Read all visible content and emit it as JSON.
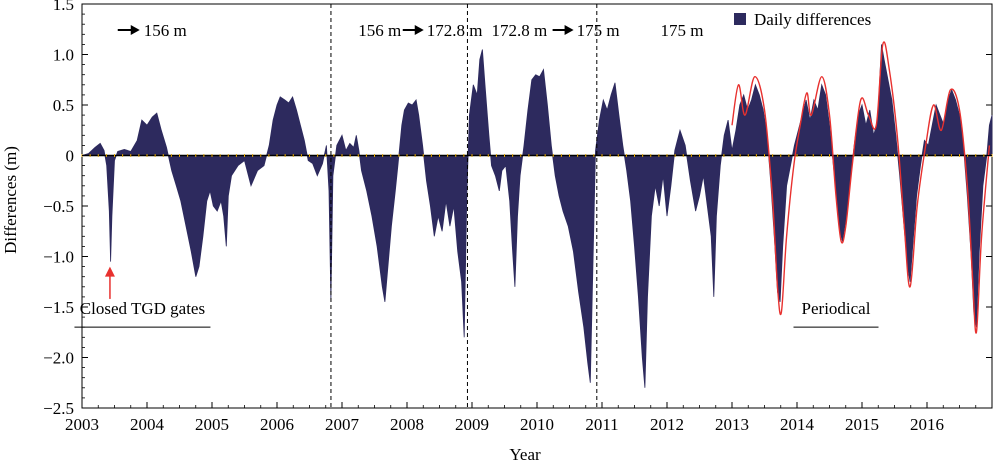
{
  "chart_data": {
    "type": "area",
    "ylabel": "Differences (m)",
    "xlabel": "Year",
    "xlim": [
      2003,
      2017
    ],
    "ylim": [
      -2.5,
      1.5
    ],
    "x_ticks": [
      "2003",
      "2004",
      "2005",
      "2006",
      "2007",
      "2008",
      "2009",
      "2010",
      "2011",
      "2012",
      "2013",
      "2014",
      "2015",
      "2016"
    ],
    "y_ticks": [
      {
        "value": 1.5,
        "label": "1.5"
      },
      {
        "value": 1.0,
        "label": "1.0"
      },
      {
        "value": 0.5,
        "label": "0.5"
      },
      {
        "value": 0,
        "label": "0"
      },
      {
        "value": -0.5,
        "label": "−0.5"
      },
      {
        "value": -1.0,
        "label": "−1.0"
      },
      {
        "value": -1.5,
        "label": "−1.5"
      },
      {
        "value": -2.0,
        "label": "−2.0"
      },
      {
        "value": -2.5,
        "label": "−2.5"
      }
    ],
    "legend": {
      "label": "Daily differences",
      "position": "top-right"
    },
    "series": [
      {
        "name": "Daily differences",
        "color": "#2d2a5e",
        "points": [
          [
            2003.0,
            0
          ],
          [
            2003.1,
            0.02
          ],
          [
            2003.2,
            0.08
          ],
          [
            2003.28,
            0.12
          ],
          [
            2003.34,
            0.05
          ],
          [
            2003.38,
            -0.1
          ],
          [
            2003.42,
            -0.55
          ],
          [
            2003.44,
            -1.05
          ],
          [
            2003.46,
            -0.6
          ],
          [
            2003.5,
            -0.05
          ],
          [
            2003.55,
            0.04
          ],
          [
            2003.65,
            0.06
          ],
          [
            2003.75,
            0.04
          ],
          [
            2003.85,
            0.15
          ],
          [
            2003.92,
            0.35
          ],
          [
            2004.0,
            0.3
          ],
          [
            2004.08,
            0.38
          ],
          [
            2004.15,
            0.42
          ],
          [
            2004.22,
            0.25
          ],
          [
            2004.3,
            0.08
          ],
          [
            2004.38,
            -0.15
          ],
          [
            2004.45,
            -0.3
          ],
          [
            2004.52,
            -0.45
          ],
          [
            2004.6,
            -0.7
          ],
          [
            2004.68,
            -0.95
          ],
          [
            2004.75,
            -1.2
          ],
          [
            2004.8,
            -1.1
          ],
          [
            2004.86,
            -0.8
          ],
          [
            2004.92,
            -0.45
          ],
          [
            2004.97,
            -0.35
          ],
          [
            2005.02,
            -0.5
          ],
          [
            2005.08,
            -0.55
          ],
          [
            2005.14,
            -0.45
          ],
          [
            2005.18,
            -0.6
          ],
          [
            2005.22,
            -0.9
          ],
          [
            2005.25,
            -0.4
          ],
          [
            2005.3,
            -0.2
          ],
          [
            2005.4,
            -0.1
          ],
          [
            2005.5,
            -0.05
          ],
          [
            2005.6,
            -0.3
          ],
          [
            2005.7,
            -0.15
          ],
          [
            2005.8,
            -0.1
          ],
          [
            2005.88,
            0.1
          ],
          [
            2005.94,
            0.35
          ],
          [
            2006.0,
            0.5
          ],
          [
            2006.05,
            0.58
          ],
          [
            2006.12,
            0.55
          ],
          [
            2006.18,
            0.52
          ],
          [
            2006.24,
            0.58
          ],
          [
            2006.3,
            0.45
          ],
          [
            2006.36,
            0.3
          ],
          [
            2006.42,
            0.15
          ],
          [
            2006.48,
            -0.05
          ],
          [
            2006.55,
            -0.08
          ],
          [
            2006.62,
            -0.2
          ],
          [
            2006.7,
            -0.08
          ],
          [
            2006.76,
            0.1
          ],
          [
            2006.8,
            -0.35
          ],
          [
            2006.83,
            -1.45
          ],
          [
            2006.86,
            -0.2
          ],
          [
            2006.92,
            0.1
          ],
          [
            2007.0,
            0.2
          ],
          [
            2007.06,
            0.05
          ],
          [
            2007.12,
            0.12
          ],
          [
            2007.18,
            0.08
          ],
          [
            2007.22,
            0.2
          ],
          [
            2007.26,
            0.05
          ],
          [
            2007.3,
            -0.15
          ],
          [
            2007.38,
            -0.35
          ],
          [
            2007.46,
            -0.6
          ],
          [
            2007.54,
            -0.9
          ],
          [
            2007.62,
            -1.3
          ],
          [
            2007.66,
            -1.45
          ],
          [
            2007.7,
            -1.15
          ],
          [
            2007.76,
            -0.7
          ],
          [
            2007.82,
            -0.35
          ],
          [
            2007.86,
            -0.1
          ],
          [
            2007.92,
            0.3
          ],
          [
            2007.96,
            0.45
          ],
          [
            2008.02,
            0.52
          ],
          [
            2008.08,
            0.5
          ],
          [
            2008.14,
            0.55
          ],
          [
            2008.18,
            0.4
          ],
          [
            2008.24,
            0.1
          ],
          [
            2008.3,
            -0.25
          ],
          [
            2008.36,
            -0.5
          ],
          [
            2008.42,
            -0.8
          ],
          [
            2008.48,
            -0.6
          ],
          [
            2008.54,
            -0.75
          ],
          [
            2008.6,
            -0.45
          ],
          [
            2008.66,
            -0.7
          ],
          [
            2008.72,
            -0.5
          ],
          [
            2008.78,
            -0.95
          ],
          [
            2008.84,
            -1.25
          ],
          [
            2008.88,
            -1.8
          ],
          [
            2008.92,
            -0.4
          ],
          [
            2008.96,
            0.4
          ],
          [
            2009.02,
            0.7
          ],
          [
            2009.08,
            0.6
          ],
          [
            2009.12,
            0.95
          ],
          [
            2009.16,
            1.05
          ],
          [
            2009.2,
            0.7
          ],
          [
            2009.26,
            0.2
          ],
          [
            2009.3,
            -0.1
          ],
          [
            2009.36,
            -0.2
          ],
          [
            2009.42,
            -0.35
          ],
          [
            2009.46,
            -0.15
          ],
          [
            2009.52,
            -0.1
          ],
          [
            2009.58,
            -0.45
          ],
          [
            2009.62,
            -0.9
          ],
          [
            2009.66,
            -1.3
          ],
          [
            2009.7,
            -0.6
          ],
          [
            2009.74,
            -0.2
          ],
          [
            2009.8,
            0.1
          ],
          [
            2009.86,
            0.45
          ],
          [
            2009.92,
            0.75
          ],
          [
            2009.98,
            0.8
          ],
          [
            2010.04,
            0.78
          ],
          [
            2010.1,
            0.85
          ],
          [
            2010.16,
            0.5
          ],
          [
            2010.22,
            0.1
          ],
          [
            2010.28,
            -0.2
          ],
          [
            2010.34,
            -0.4
          ],
          [
            2010.4,
            -0.55
          ],
          [
            2010.48,
            -0.7
          ],
          [
            2010.56,
            -0.95
          ],
          [
            2010.64,
            -1.35
          ],
          [
            2010.72,
            -1.7
          ],
          [
            2010.78,
            -2.05
          ],
          [
            2010.82,
            -2.25
          ],
          [
            2010.86,
            -1.1
          ],
          [
            2010.9,
            0.05
          ],
          [
            2010.96,
            0.35
          ],
          [
            2011.02,
            0.55
          ],
          [
            2011.08,
            0.45
          ],
          [
            2011.14,
            0.6
          ],
          [
            2011.2,
            0.72
          ],
          [
            2011.26,
            0.4
          ],
          [
            2011.32,
            0.1
          ],
          [
            2011.38,
            -0.15
          ],
          [
            2011.44,
            -0.45
          ],
          [
            2011.5,
            -0.9
          ],
          [
            2011.56,
            -1.4
          ],
          [
            2011.62,
            -2.0
          ],
          [
            2011.66,
            -2.3
          ],
          [
            2011.7,
            -1.4
          ],
          [
            2011.76,
            -0.6
          ],
          [
            2011.82,
            -0.3
          ],
          [
            2011.88,
            -0.5
          ],
          [
            2011.94,
            -0.2
          ],
          [
            2012.0,
            -0.6
          ],
          [
            2012.06,
            -0.3
          ],
          [
            2012.12,
            0.05
          ],
          [
            2012.2,
            0.25
          ],
          [
            2012.28,
            0.1
          ],
          [
            2012.36,
            -0.25
          ],
          [
            2012.44,
            -0.55
          ],
          [
            2012.5,
            -0.4
          ],
          [
            2012.56,
            -0.2
          ],
          [
            2012.62,
            -0.5
          ],
          [
            2012.68,
            -0.8
          ],
          [
            2012.72,
            -1.4
          ],
          [
            2012.76,
            -0.6
          ],
          [
            2012.82,
            -0.1
          ],
          [
            2012.88,
            0.2
          ],
          [
            2012.94,
            0.35
          ],
          [
            2013.0,
            0.05
          ],
          [
            2013.06,
            0.25
          ],
          [
            2013.12,
            0.5
          ],
          [
            2013.18,
            0.6
          ],
          [
            2013.24,
            0.45
          ],
          [
            2013.3,
            0.55
          ],
          [
            2013.36,
            0.7
          ],
          [
            2013.42,
            0.6
          ],
          [
            2013.48,
            0.45
          ],
          [
            2013.54,
            0.2
          ],
          [
            2013.6,
            -0.3
          ],
          [
            2013.66,
            -0.9
          ],
          [
            2013.7,
            -1.35
          ],
          [
            2013.74,
            -1.45
          ],
          [
            2013.78,
            -0.9
          ],
          [
            2013.84,
            -0.3
          ],
          [
            2013.9,
            -0.1
          ],
          [
            2013.96,
            0.1
          ],
          [
            2014.02,
            0.25
          ],
          [
            2014.08,
            0.4
          ],
          [
            2014.14,
            0.55
          ],
          [
            2014.2,
            0.35
          ],
          [
            2014.26,
            0.55
          ],
          [
            2014.32,
            0.45
          ],
          [
            2014.38,
            0.7
          ],
          [
            2014.44,
            0.6
          ],
          [
            2014.5,
            0.3
          ],
          [
            2014.56,
            -0.1
          ],
          [
            2014.62,
            -0.5
          ],
          [
            2014.66,
            -0.75
          ],
          [
            2014.7,
            -0.85
          ],
          [
            2014.76,
            -0.6
          ],
          [
            2014.82,
            -0.25
          ],
          [
            2014.88,
            0.1
          ],
          [
            2014.94,
            0.4
          ],
          [
            2015.0,
            0.5
          ],
          [
            2015.06,
            0.3
          ],
          [
            2015.12,
            0.45
          ],
          [
            2015.18,
            0.2
          ],
          [
            2015.24,
            0.35
          ],
          [
            2015.3,
            1.1
          ],
          [
            2015.34,
            0.95
          ],
          [
            2015.4,
            0.75
          ],
          [
            2015.46,
            0.55
          ],
          [
            2015.52,
            0.2
          ],
          [
            2015.58,
            -0.2
          ],
          [
            2015.62,
            -0.5
          ],
          [
            2015.66,
            -0.8
          ],
          [
            2015.7,
            -1.1
          ],
          [
            2015.74,
            -1.25
          ],
          [
            2015.78,
            -0.9
          ],
          [
            2015.84,
            -0.4
          ],
          [
            2015.9,
            -0.1
          ],
          [
            2015.96,
            0.15
          ],
          [
            2016.02,
            0.1
          ],
          [
            2016.08,
            0.3
          ],
          [
            2016.14,
            0.5
          ],
          [
            2016.2,
            0.4
          ],
          [
            2016.26,
            0.3
          ],
          [
            2016.32,
            0.55
          ],
          [
            2016.38,
            0.65
          ],
          [
            2016.44,
            0.55
          ],
          [
            2016.5,
            0.4
          ],
          [
            2016.56,
            0.1
          ],
          [
            2016.62,
            -0.4
          ],
          [
            2016.68,
            -1.0
          ],
          [
            2016.72,
            -1.55
          ],
          [
            2016.76,
            -1.7
          ],
          [
            2016.8,
            -1.0
          ],
          [
            2016.86,
            -0.3
          ],
          [
            2016.92,
            0.0
          ],
          [
            2016.96,
            0.3
          ],
          [
            2017.0,
            0.4
          ]
        ]
      }
    ],
    "envelope": {
      "color": "#e8312f",
      "points": [
        [
          2013.0,
          0.3
        ],
        [
          2013.1,
          0.7
        ],
        [
          2013.2,
          0.4
        ],
        [
          2013.35,
          0.78
        ],
        [
          2013.5,
          0.45
        ],
        [
          2013.62,
          -0.4
        ],
        [
          2013.7,
          -1.3
        ],
        [
          2013.76,
          -1.55
        ],
        [
          2013.84,
          -0.8
        ],
        [
          2013.95,
          -0.1
        ],
        [
          2014.05,
          0.3
        ],
        [
          2014.15,
          0.62
        ],
        [
          2014.22,
          0.4
        ],
        [
          2014.38,
          0.78
        ],
        [
          2014.5,
          0.4
        ],
        [
          2014.6,
          -0.4
        ],
        [
          2014.68,
          -0.85
        ],
        [
          2014.75,
          -0.7
        ],
        [
          2014.85,
          -0.1
        ],
        [
          2014.98,
          0.55
        ],
        [
          2015.1,
          0.4
        ],
        [
          2015.22,
          0.3
        ],
        [
          2015.32,
          1.1
        ],
        [
          2015.42,
          0.85
        ],
        [
          2015.55,
          0.15
        ],
        [
          2015.65,
          -0.7
        ],
        [
          2015.74,
          -1.3
        ],
        [
          2015.85,
          -0.5
        ],
        [
          2015.98,
          0.1
        ],
        [
          2016.1,
          0.5
        ],
        [
          2016.22,
          0.25
        ],
        [
          2016.36,
          0.65
        ],
        [
          2016.5,
          0.45
        ],
        [
          2016.62,
          -0.3
        ],
        [
          2016.7,
          -1.2
        ],
        [
          2016.76,
          -1.75
        ],
        [
          2016.84,
          -0.8
        ],
        [
          2016.96,
          0.1
        ]
      ]
    },
    "dividers": [
      2006.83,
      2008.93,
      2010.92
    ],
    "phase_labels": [
      {
        "x": 2003.95,
        "text": "156 m",
        "arrow_before": true
      },
      {
        "x": 2007.25,
        "text": "156 m",
        "arrow_after": true,
        "after_text": "172.8 m"
      },
      {
        "x": 2009.3,
        "text": "172.8 m",
        "arrow_after": true,
        "after_text": "175 m"
      },
      {
        "x": 2011.9,
        "text": "175 m"
      }
    ],
    "annotations": [
      {
        "text": "Closed TGD gates",
        "x": 2003.93,
        "y": -1.57,
        "underline": true
      },
      {
        "text": "Periodical",
        "x": 2014.6,
        "y": -1.57,
        "underline": true
      }
    ],
    "arrow_annotation": {
      "x": 2003.43,
      "y_tip": -1.1,
      "y_tail": -1.42,
      "color": "#e8312f"
    }
  }
}
